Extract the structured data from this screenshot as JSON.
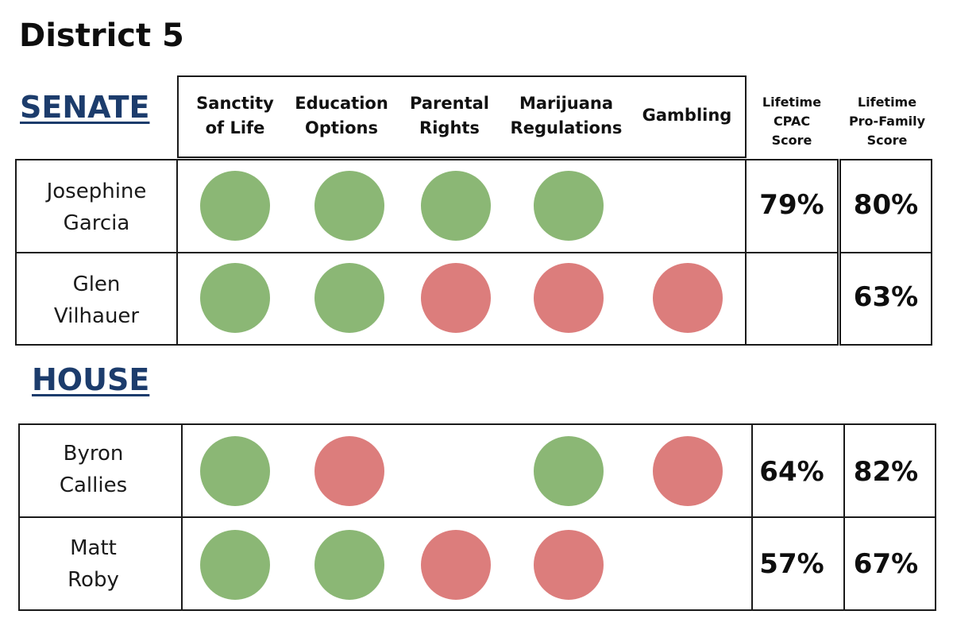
{
  "title": "District 5",
  "colors": {
    "support": "#8bb775",
    "oppose": "#dc7d7c",
    "section": "#1c3c6c"
  },
  "headers": {
    "issues": [
      [
        "Sanctity",
        "of Life"
      ],
      [
        "Education",
        "Options"
      ],
      [
        "Parental",
        "Rights"
      ],
      [
        "Marijuana",
        "Regulations"
      ],
      [
        "Gambling"
      ]
    ],
    "cpac": [
      "Lifetime",
      "CPAC",
      "Score"
    ],
    "profamily": [
      "Lifetime",
      "Pro-Family",
      "Score"
    ]
  },
  "sections": [
    {
      "label": "SENATE",
      "rows": [
        {
          "name": [
            "Josephine",
            "Garcia"
          ],
          "votes": [
            "support",
            "support",
            "support",
            "support",
            null
          ],
          "cpac": "79%",
          "profamily": "80%"
        },
        {
          "name": [
            "Glen",
            "Vilhauer"
          ],
          "votes": [
            "support",
            "support",
            "oppose",
            "oppose",
            "oppose"
          ],
          "cpac": "",
          "profamily": "63%"
        }
      ]
    },
    {
      "label": "HOUSE",
      "rows": [
        {
          "name": [
            "Byron",
            "Callies"
          ],
          "votes": [
            "support",
            "oppose",
            null,
            "support",
            "oppose"
          ],
          "cpac": "64%",
          "profamily": "82%"
        },
        {
          "name": [
            "Matt",
            "Roby"
          ],
          "votes": [
            "support",
            "support",
            "oppose",
            "oppose",
            null
          ],
          "cpac": "57%",
          "profamily": "67%"
        }
      ]
    }
  ]
}
